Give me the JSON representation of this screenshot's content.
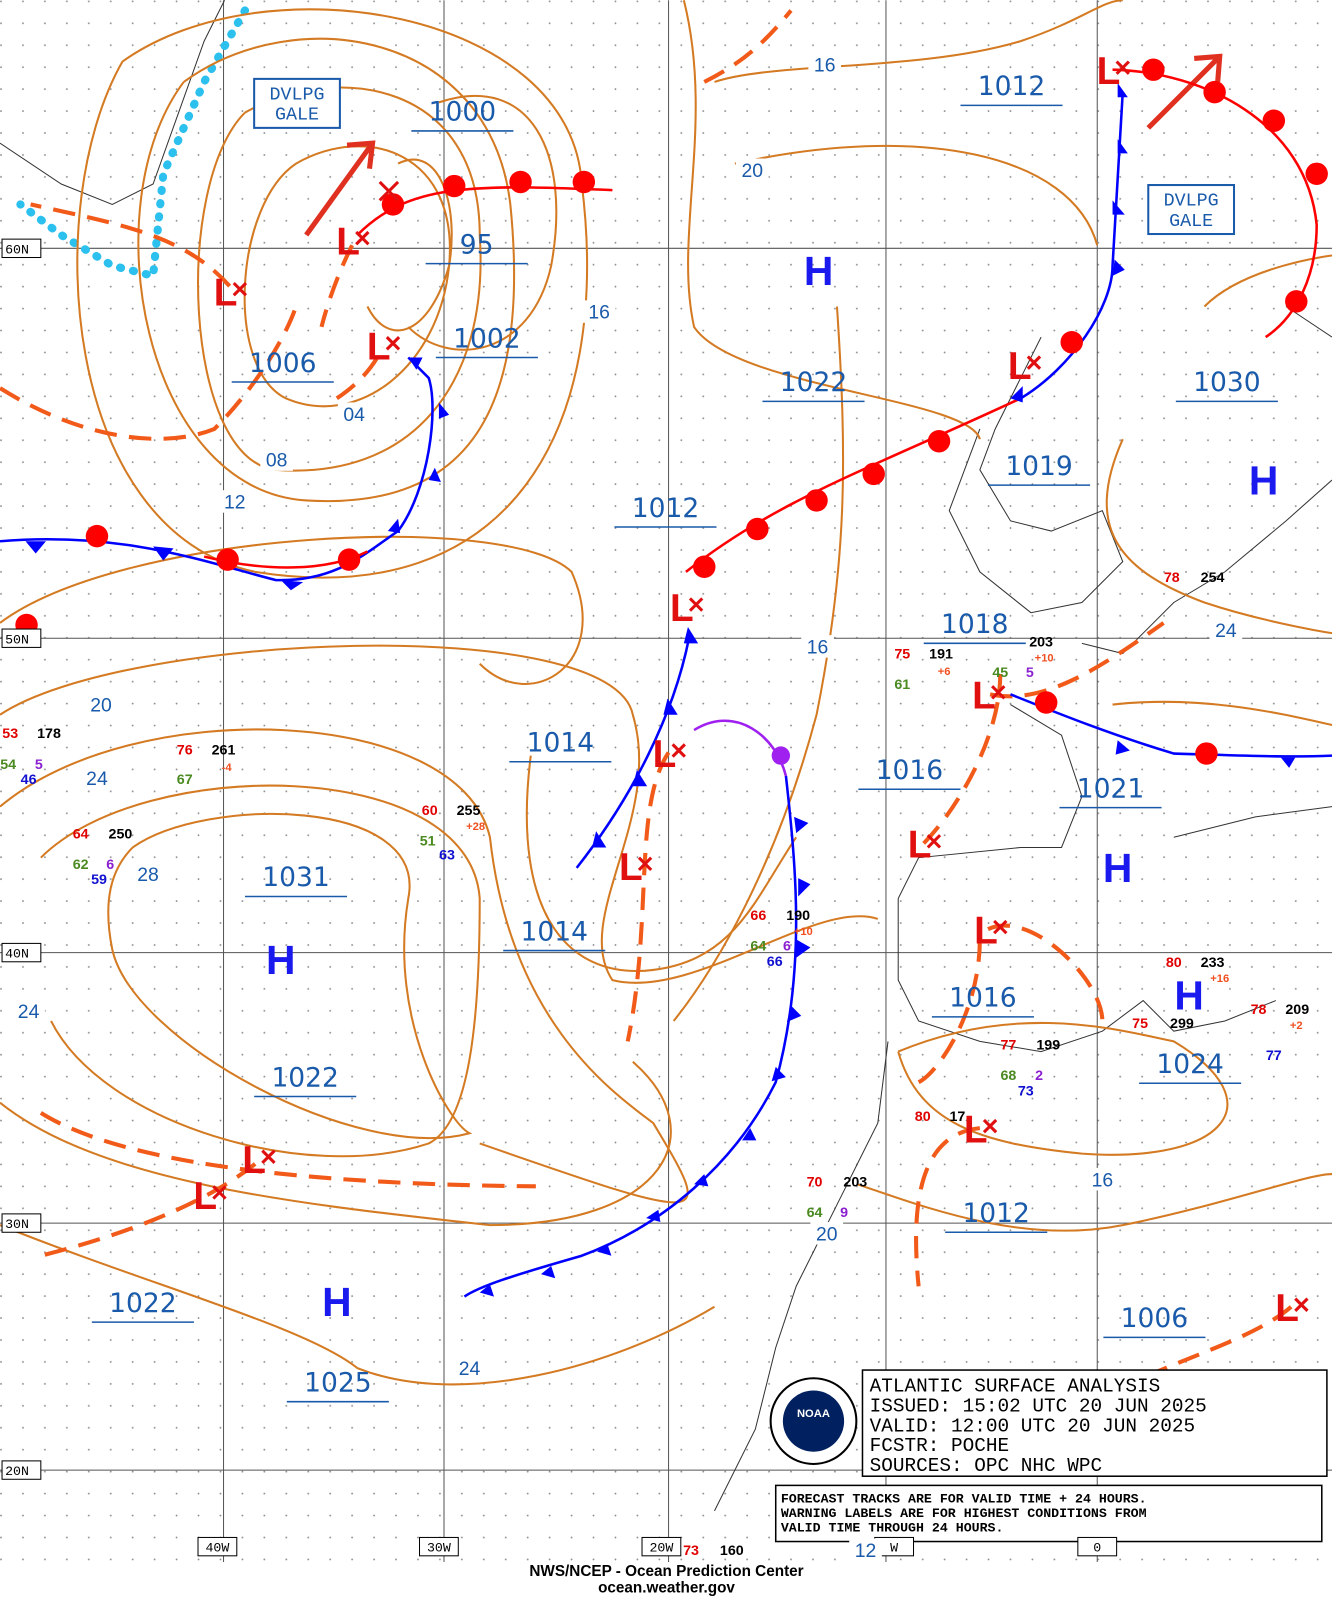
{
  "map": {
    "title": [
      "ATLANTIC SURFACE ANALYSIS",
      "ISSUED: 15:02 UTC 20 JUN 2025",
      "VALID:  12:00 UTC 20 JUN 2025",
      "FCSTR:  POCHE",
      "SOURCES: OPC NHC WPC"
    ],
    "note": [
      "FORECAST TRACKS ARE FOR VALID TIME + 24 HOURS.",
      "WARNING LABELS ARE FOR HIGHEST CONDITIONS FROM",
      "VALID TIME THROUGH 24 HOURS."
    ],
    "footer": [
      "NWS/NCEP - Ocean Prediction Center",
      "ocean.weather.gov"
    ],
    "lat_labels": [
      "60N",
      "50N",
      "40N",
      "30N",
      "20N"
    ],
    "lon_labels": [
      "40W",
      "30W",
      "20W",
      "W",
      "0"
    ],
    "warnings": [
      [
        "DVLPG",
        "GALE"
      ],
      [
        "DVLPG",
        "GALE"
      ]
    ],
    "center_pressures": [
      "1000",
      "95",
      "1002",
      "1006",
      "1012",
      "1022",
      "1019",
      "1030",
      "1012",
      "1018",
      "1014",
      "1016",
      "1021",
      "1031",
      "1014",
      "1016",
      "1022",
      "1024",
      "1022",
      "1012",
      "1025",
      "1006"
    ],
    "highs": [
      "H",
      "H",
      "H",
      "H",
      "H",
      "H"
    ],
    "lows": [
      "L",
      "L",
      "L",
      "L",
      "L",
      "L",
      "L",
      "L",
      "L",
      "L",
      "L",
      "L",
      "L",
      "L",
      "L"
    ],
    "isobar_labels": [
      "16",
      "20",
      "16",
      "04",
      "08",
      "12",
      "16",
      "24",
      "20",
      "24",
      "28",
      "24",
      "16",
      "20",
      "24",
      "12"
    ],
    "station_values": [
      "53",
      "178",
      "54",
      "5",
      "46",
      "76",
      "261",
      "67",
      "-4",
      "64",
      "250",
      "62",
      "6",
      "59",
      "60",
      "255",
      "+28",
      "51",
      "63",
      "66",
      "190",
      "+10",
      "64",
      "6",
      "66",
      "75",
      "191",
      "+6",
      "61",
      "203",
      "+10",
      "45",
      "5",
      "78",
      "254",
      "80",
      "233",
      "+16",
      "75",
      "299",
      "77",
      "199",
      "68",
      "2",
      "73",
      "78",
      "209",
      "+2",
      "77",
      "80",
      "17",
      "70",
      "203",
      "64",
      "9",
      "73",
      "160"
    ]
  }
}
